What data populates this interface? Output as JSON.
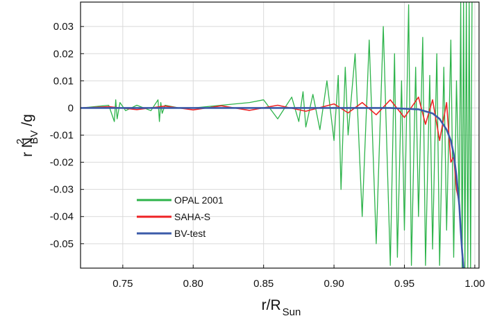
{
  "chart_data": {
    "type": "line",
    "title": "",
    "xlabel": {
      "main": "r/R",
      "sub": "Sun"
    },
    "ylabel": {
      "main": "r N",
      "sup": "2",
      "sub": "BV",
      "tail": " /g"
    },
    "xlim": [
      0.72,
      1.003
    ],
    "ylim": [
      -0.059,
      0.039
    ],
    "grid": true,
    "legend_position": "lower-left",
    "x_ticks": [
      0.75,
      0.8,
      0.85,
      0.9,
      0.95,
      1.0
    ],
    "x_tick_labels": [
      "0.75",
      "0.80",
      "0.85",
      "0.90",
      "0.95",
      "1.00"
    ],
    "y_ticks": [
      0.03,
      0.02,
      0.01,
      0,
      -0.01,
      -0.02,
      -0.03,
      -0.04,
      -0.05
    ],
    "y_tick_labels": [
      "0.03",
      "0.02",
      "0.01",
      "0",
      "-0.01",
      "-0.02",
      "-0.03",
      "-0.04",
      "-0.05"
    ],
    "series": [
      {
        "name": "OPAL 2001",
        "color": "#2db34a",
        "x": [
          0.72,
          0.74,
          0.744,
          0.745,
          0.746,
          0.748,
          0.752,
          0.76,
          0.77,
          0.775,
          0.776,
          0.777,
          0.778,
          0.78,
          0.79,
          0.8,
          0.82,
          0.84,
          0.85,
          0.86,
          0.87,
          0.875,
          0.878,
          0.88,
          0.885,
          0.89,
          0.895,
          0.9,
          0.903,
          0.905,
          0.908,
          0.91,
          0.915,
          0.92,
          0.925,
          0.93,
          0.935,
          0.94,
          0.943,
          0.945,
          0.948,
          0.95,
          0.953,
          0.955,
          0.958,
          0.96,
          0.963,
          0.965,
          0.968,
          0.97,
          0.973,
          0.975,
          0.978,
          0.98,
          0.983,
          0.985,
          0.987,
          0.989,
          0.99,
          0.991,
          0.992,
          0.993,
          0.994,
          0.995,
          0.996,
          0.997,
          0.998
        ],
        "y": [
          0,
          0.001,
          -0.005,
          0.003,
          -0.004,
          0.002,
          -0.001,
          0.001,
          -0.001,
          0.003,
          -0.005,
          0.002,
          -0.002,
          0.001,
          0,
          0,
          0.001,
          0.002,
          0.003,
          -0.004,
          0.004,
          -0.005,
          0.006,
          -0.007,
          0.005,
          -0.008,
          0.01,
          -0.012,
          0.012,
          -0.03,
          0.015,
          -0.01,
          0.02,
          -0.04,
          0.025,
          -0.05,
          0.03,
          -0.058,
          0.02,
          -0.055,
          0.01,
          -0.045,
          0.038,
          -0.058,
          0.015,
          -0.04,
          0.026,
          -0.058,
          0.012,
          -0.052,
          0.02,
          -0.058,
          0.015,
          -0.045,
          0.025,
          -0.055,
          0.01,
          -0.035,
          0.039,
          -0.059,
          0.039,
          -0.059,
          0.039,
          -0.059,
          0.039,
          -0.059,
          0.039
        ]
      },
      {
        "name": "SAHA-S",
        "color": "#ee2224",
        "x": [
          0.72,
          0.74,
          0.76,
          0.78,
          0.8,
          0.82,
          0.84,
          0.86,
          0.88,
          0.9,
          0.91,
          0.92,
          0.93,
          0.94,
          0.95,
          0.96,
          0.965,
          0.97,
          0.975,
          0.98,
          0.983,
          0.985,
          0.987,
          0.989,
          0.99,
          0.991,
          0.992
        ],
        "y": [
          0,
          0.0005,
          -0.0006,
          0.0007,
          -0.0007,
          0.0008,
          -0.0009,
          0.001,
          -0.0012,
          0.0015,
          -0.0018,
          0.002,
          -0.0025,
          0.003,
          -0.0035,
          0.004,
          -0.006,
          0.003,
          -0.012,
          0.002,
          -0.02,
          -0.018,
          -0.03,
          -0.035,
          -0.045,
          -0.052,
          -0.058
        ]
      },
      {
        "name": "BV-test",
        "color": "#3b5ba9",
        "x": [
          0.72,
          0.8,
          0.9,
          0.94,
          0.96,
          0.97,
          0.975,
          0.98,
          0.983,
          0.985,
          0.987,
          0.989,
          0.99,
          0.991,
          0.992
        ],
        "y": [
          0,
          0,
          0,
          0,
          -0.0005,
          -0.002,
          -0.004,
          -0.008,
          -0.012,
          -0.017,
          -0.025,
          -0.036,
          -0.045,
          -0.053,
          -0.059
        ]
      }
    ]
  }
}
